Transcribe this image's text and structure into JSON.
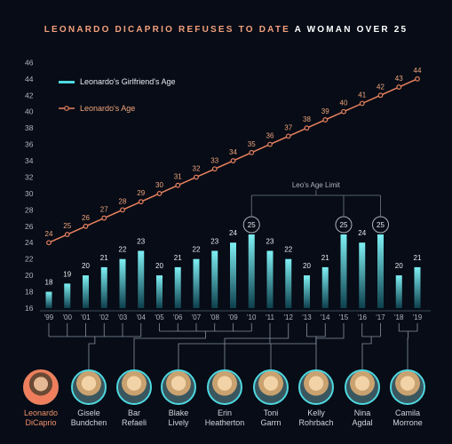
{
  "title": {
    "part1": "LEONARDO DICAPRIO REFUSES TO DATE",
    "part2": "A WOMAN OVER 25"
  },
  "chart_data": {
    "type": "bar",
    "categories": [
      "'99",
      "'00",
      "'01",
      "'02",
      "'03",
      "'04",
      "'05",
      "'06",
      "'07",
      "'08",
      "'09",
      "'10",
      "'11",
      "'12",
      "'13",
      "'14",
      "'15",
      "'16",
      "'17",
      "'18",
      "'19"
    ],
    "series": [
      {
        "name": "Leonardo's Girlfriend's Age",
        "type": "bar",
        "values": [
          18,
          19,
          20,
          21,
          22,
          23,
          20,
          21,
          22,
          23,
          24,
          25,
          23,
          22,
          20,
          21,
          25,
          24,
          25,
          20,
          21
        ]
      },
      {
        "name": "Leonardo's Age",
        "type": "line",
        "values": [
          24,
          25,
          26,
          27,
          28,
          29,
          30,
          31,
          32,
          33,
          34,
          35,
          36,
          37,
          38,
          39,
          40,
          41,
          42,
          43,
          44
        ]
      }
    ],
    "highlighted_bars": [
      11,
      16,
      18
    ],
    "ylim": [
      16,
      46
    ],
    "yticks": [
      16,
      18,
      20,
      22,
      24,
      26,
      28,
      30,
      32,
      34,
      36,
      38,
      40,
      42,
      44,
      46
    ],
    "annotation": "Leo's Age Limit",
    "legend_position": "top-left",
    "colors": {
      "bar": "#4fd8e0",
      "line": "#e8825f",
      "background": "#070c16"
    }
  },
  "people": [
    {
      "name": "Leonardo DiCaprio",
      "line1": "Leonardo",
      "line2": "DiCaprio",
      "years": []
    },
    {
      "name": "Gisele Bundchen",
      "line1": "Gisele",
      "line2": "Bundchen",
      "years": [
        "'99",
        "'00",
        "'01",
        "'02",
        "'03",
        "'04"
      ]
    },
    {
      "name": "Bar Refaeli",
      "line1": "Bar",
      "line2": "Refaeli",
      "years": [
        "'05",
        "'06",
        "'07",
        "'08",
        "'09",
        "'10"
      ]
    },
    {
      "name": "Blake Lively",
      "line1": "Blake",
      "line2": "Lively",
      "years": [
        "'11"
      ]
    },
    {
      "name": "Erin Heatherton",
      "line1": "Erin",
      "line2": "Heatherton",
      "years": [
        "'12"
      ]
    },
    {
      "name": "Toni Garrn",
      "line1": "Toni",
      "line2": "Garrn",
      "years": [
        "'13",
        "'14"
      ]
    },
    {
      "name": "Kelly Rohrbach",
      "line1": "Kelly",
      "line2": "Rohrbach",
      "years": [
        "'15"
      ]
    },
    {
      "name": "Nina Agdal",
      "line1": "Nina",
      "line2": "Agdal",
      "years": [
        "'16",
        "'17"
      ]
    },
    {
      "name": "Camila Morrone",
      "line1": "Camila",
      "line2": "Morrone",
      "years": [
        "'18",
        "'19"
      ]
    }
  ]
}
